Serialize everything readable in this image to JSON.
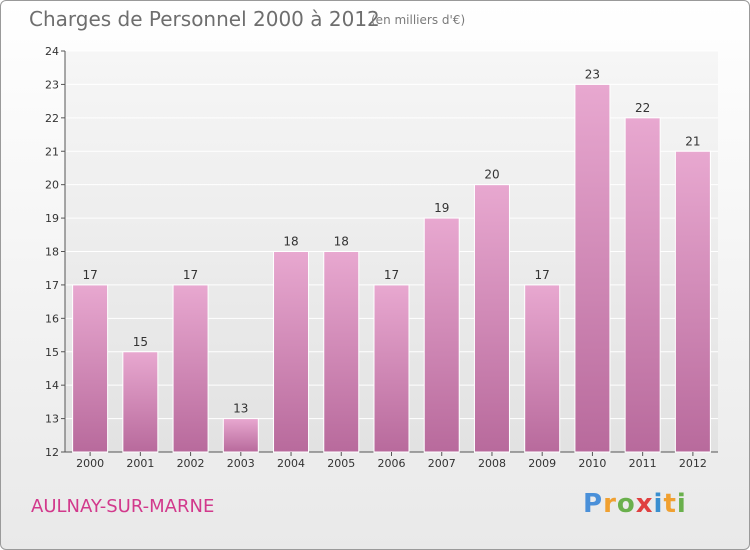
{
  "header": {
    "title": "Charges de Personnel 2000 à 2012",
    "subtitle": "(en milliers d'€)"
  },
  "footer": {
    "city": "AULNAY-SUR-MARNE",
    "logo": "Proxiti"
  },
  "colors": {
    "bar_light": "#e8a8d0",
    "bar_dark": "#b86a9c",
    "city": "#d2398c"
  },
  "chart_data": {
    "type": "bar",
    "title": "Charges de Personnel 2000 à 2012",
    "subtitle": "(en milliers d'€)",
    "categories": [
      "2000",
      "2001",
      "2002",
      "2003",
      "2004",
      "2005",
      "2006",
      "2007",
      "2008",
      "2009",
      "2010",
      "2011",
      "2012"
    ],
    "values": [
      17,
      15,
      17,
      13,
      18,
      18,
      17,
      19,
      20,
      17,
      23,
      22,
      21
    ],
    "ylim": [
      12,
      24
    ],
    "yticks": [
      12,
      13,
      14,
      15,
      16,
      17,
      18,
      19,
      20,
      21,
      22,
      23,
      24
    ],
    "grid": true,
    "xlabel": "",
    "ylabel": ""
  }
}
